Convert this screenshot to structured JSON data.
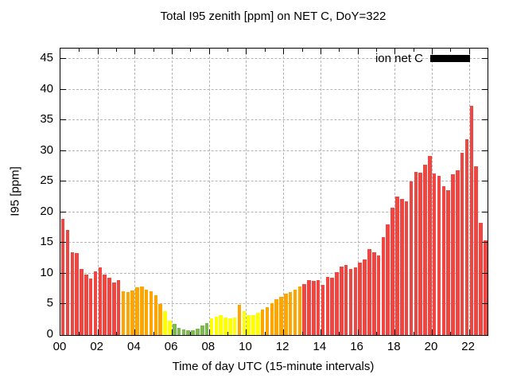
{
  "title": "Total I95 zenith [ppm] on NET C, DoY=322",
  "legend": {
    "label": "ion net C",
    "swatch_color": "#000000"
  },
  "axes": {
    "ylabel": "I95 [ppm]",
    "xlabel": "Time of day UTC (15-minute intervals)",
    "y_ticks": [
      0,
      5,
      10,
      15,
      20,
      25,
      30,
      35,
      40,
      45
    ],
    "x_ticks": [
      "00",
      "02",
      "04",
      "06",
      "08",
      "10",
      "12",
      "14",
      "16",
      "18",
      "20",
      "22"
    ]
  },
  "chart_data": {
    "type": "bar",
    "title": "Total I95 zenith [ppm] on NET C, DoY=322",
    "xlabel": "Time of day UTC (15-minute intervals)",
    "ylabel": "I95 [ppm]",
    "interval_minutes": 15,
    "xlim_hours": [
      0,
      23
    ],
    "ylim": [
      0,
      46.7
    ],
    "grid": true,
    "legend_position": "top-right",
    "legend_label": "ion net C",
    "color_thresholds": {
      "green_below": 2,
      "yellow_below": 4,
      "orange_below": 8
    },
    "palette": {
      "green": "#7cb950",
      "yellow": "#ffff00",
      "orange": "#ffa500",
      "red": "#f04642"
    },
    "times": [
      "00:00",
      "00:15",
      "00:30",
      "00:45",
      "01:00",
      "01:15",
      "01:30",
      "01:45",
      "02:00",
      "02:15",
      "02:30",
      "02:45",
      "03:00",
      "03:15",
      "03:30",
      "03:45",
      "04:00",
      "04:15",
      "04:30",
      "04:45",
      "05:00",
      "05:15",
      "05:30",
      "05:45",
      "06:00",
      "06:15",
      "06:30",
      "06:45",
      "07:00",
      "07:15",
      "07:30",
      "07:45",
      "08:00",
      "08:15",
      "08:30",
      "08:45",
      "09:00",
      "09:15",
      "09:30",
      "09:45",
      "10:00",
      "10:15",
      "10:30",
      "10:45",
      "11:00",
      "11:15",
      "11:30",
      "11:45",
      "12:00",
      "12:15",
      "12:30",
      "12:45",
      "13:00",
      "13:15",
      "13:30",
      "13:45",
      "14:00",
      "14:15",
      "14:30",
      "14:45",
      "15:00",
      "15:15",
      "15:30",
      "15:45",
      "16:00",
      "16:15",
      "16:30",
      "16:45",
      "17:00",
      "17:15",
      "17:30",
      "17:45",
      "18:00",
      "18:15",
      "18:30",
      "18:45",
      "19:00",
      "19:15",
      "19:30",
      "19:45",
      "20:00",
      "20:15",
      "20:30",
      "20:45",
      "21:00",
      "21:15",
      "21:30",
      "21:45",
      "22:00",
      "22:15",
      "22:30",
      "22:45"
    ],
    "values": [
      19.0,
      17.1,
      13.5,
      13.3,
      10.8,
      9.9,
      9.2,
      10.4,
      11.0,
      9.9,
      9.4,
      8.6,
      8.9,
      7.2,
      7.0,
      7.3,
      7.8,
      7.9,
      7.4,
      7.1,
      6.5,
      5.0,
      3.9,
      2.4,
      1.8,
      1.2,
      0.9,
      0.8,
      0.8,
      1.0,
      1.5,
      1.9,
      2.7,
      3.0,
      3.3,
      2.9,
      2.7,
      2.9,
      4.9,
      3.9,
      3.3,
      3.2,
      3.6,
      4.1,
      4.5,
      5.2,
      5.9,
      6.2,
      6.7,
      7.0,
      7.4,
      7.9,
      8.3,
      8.9,
      8.8,
      8.9,
      8.2,
      9.5,
      9.3,
      10.2,
      11.1,
      11.4,
      10.8,
      11.0,
      11.8,
      12.3,
      14.0,
      13.5,
      13.0,
      15.9,
      18.0,
      20.7,
      22.6,
      22.2,
      21.8,
      25.0,
      26.6,
      26.5,
      27.8,
      29.2,
      26.3,
      26.0,
      24.3,
      23.6,
      26.2,
      26.8,
      29.7,
      31.9,
      37.3,
      27.5,
      18.3,
      15.4
    ]
  }
}
